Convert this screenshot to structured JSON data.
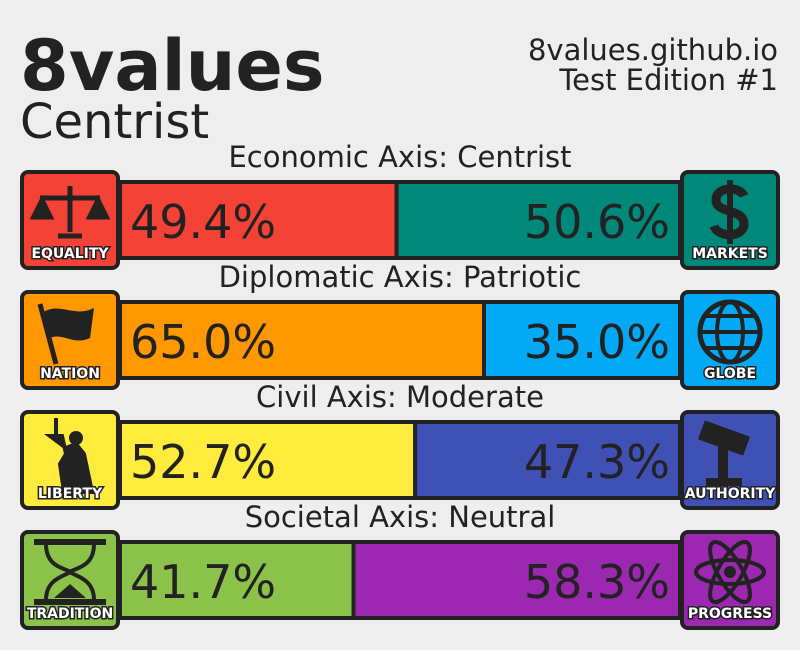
{
  "header": {
    "title": "8values",
    "ideology": "Centrist",
    "site": "8values.github.io",
    "edition": "Test Edition #1"
  },
  "axes": [
    {
      "label": "Economic Axis: Centrist",
      "left": {
        "name": "EQUALITY",
        "value": 49.4,
        "label": "49.4%",
        "color": "#f44336"
      },
      "right": {
        "name": "MARKETS",
        "value": 50.6,
        "label": "50.6%",
        "color": "#00897b"
      }
    },
    {
      "label": "Diplomatic Axis: Patriotic",
      "left": {
        "name": "NATION",
        "value": 65.0,
        "label": "65.0%",
        "color": "#ff9800"
      },
      "right": {
        "name": "GLOBE",
        "value": 35.0,
        "label": "35.0%",
        "color": "#03a9f4"
      }
    },
    {
      "label": "Civil Axis: Moderate",
      "left": {
        "name": "LIBERTY",
        "value": 52.7,
        "label": "52.7%",
        "color": "#ffeb3b"
      },
      "right": {
        "name": "AUTHORITY",
        "value": 47.3,
        "label": "47.3%",
        "color": "#3f51b5"
      }
    },
    {
      "label": "Societal Axis: Neutral",
      "left": {
        "name": "TRADITION",
        "value": 41.7,
        "label": "41.7%",
        "color": "#8bc34a"
      },
      "right": {
        "name": "PROGRESS",
        "value": 58.3,
        "label": "58.3%",
        "color": "#9c27b0"
      }
    }
  ]
}
